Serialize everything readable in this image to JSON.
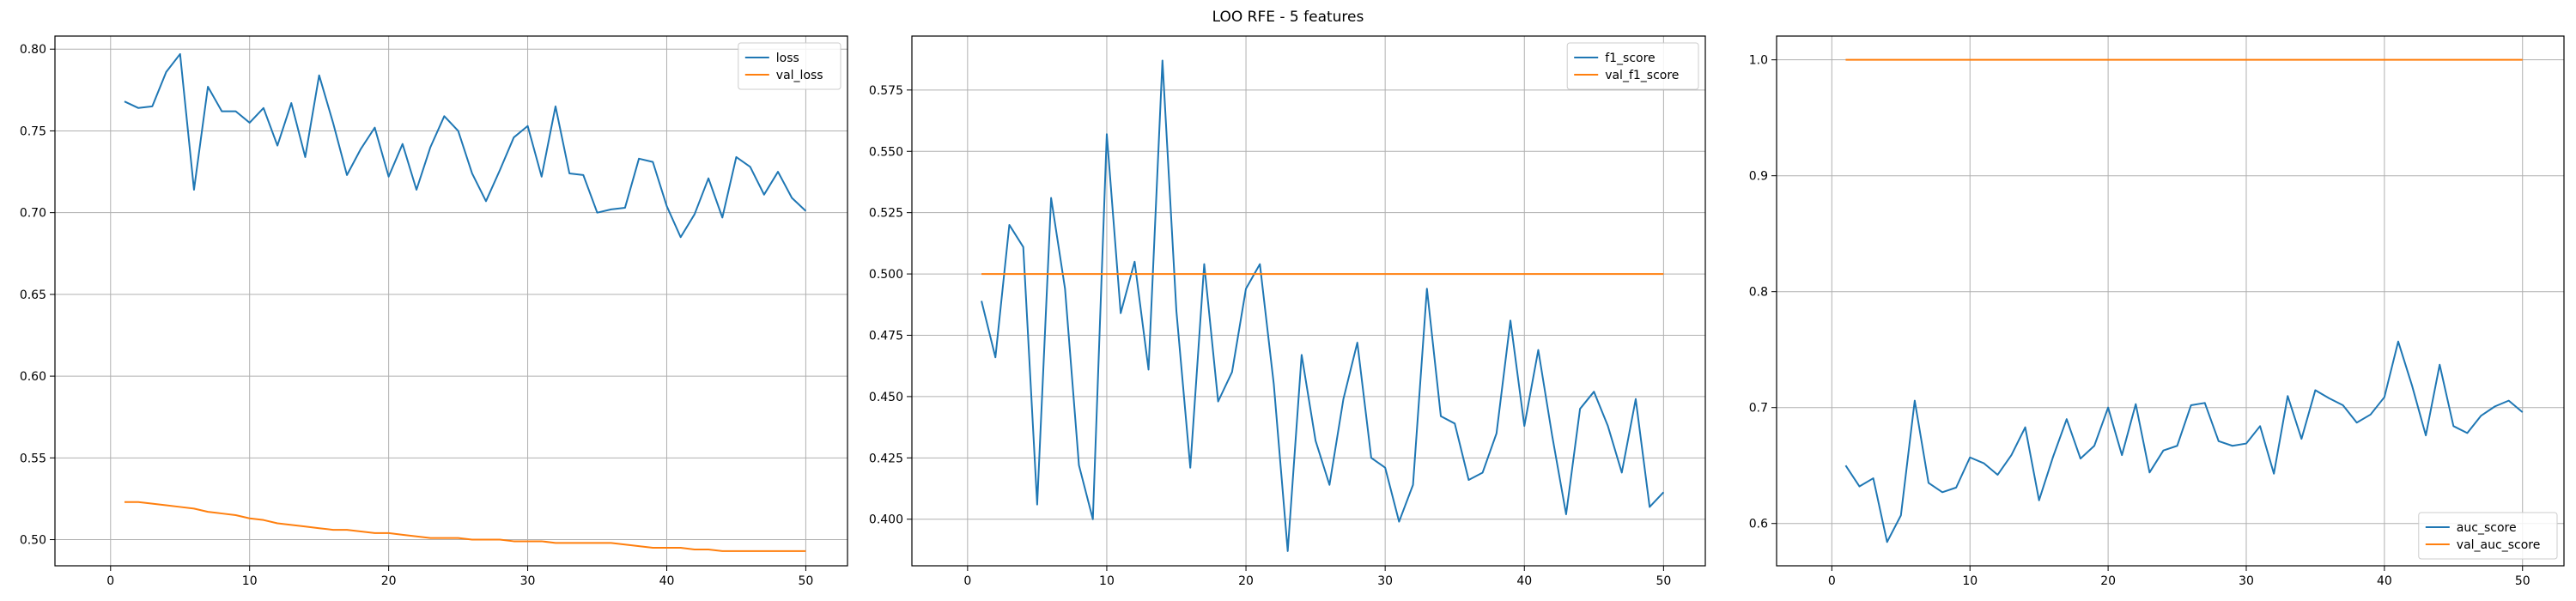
{
  "suptitle": "LOO RFE - 5 features",
  "colors": {
    "series1": "#1f77b4",
    "series2": "#ff7f0e",
    "grid": "#b0b0b0"
  },
  "chart_data": [
    {
      "type": "line",
      "title": "",
      "xlabel": "",
      "ylabel": "",
      "grid": true,
      "legend": "top-right",
      "xlim": [
        -4,
        53
      ],
      "ylim": [
        0.484,
        0.808
      ],
      "xticks": [
        "0",
        "10",
        "20",
        "30",
        "40",
        "50"
      ],
      "yticks": [
        "0.50",
        "0.55",
        "0.60",
        "0.65",
        "0.70",
        "0.75",
        "0.80"
      ],
      "x": [
        1,
        2,
        3,
        4,
        5,
        6,
        7,
        8,
        9,
        10,
        11,
        12,
        13,
        14,
        15,
        16,
        17,
        18,
        19,
        20,
        21,
        22,
        23,
        24,
        25,
        26,
        27,
        28,
        29,
        30,
        31,
        32,
        33,
        34,
        35,
        36,
        37,
        38,
        39,
        40,
        41,
        42,
        43,
        44,
        45,
        46,
        47,
        48,
        49,
        50
      ],
      "series": [
        {
          "name": "loss",
          "values": [
            0.768,
            0.764,
            0.765,
            0.786,
            0.797,
            0.714,
            0.777,
            0.762,
            0.762,
            0.755,
            0.764,
            0.741,
            0.767,
            0.734,
            0.784,
            0.755,
            0.723,
            0.739,
            0.752,
            0.722,
            0.742,
            0.714,
            0.74,
            0.759,
            0.75,
            0.724,
            0.707,
            0.726,
            0.746,
            0.753,
            0.722,
            0.765,
            0.724,
            0.723,
            0.7,
            0.702,
            0.703,
            0.733,
            0.731,
            0.704,
            0.685,
            0.699,
            0.721,
            0.697,
            0.734,
            0.728,
            0.711,
            0.725,
            0.709,
            0.701
          ]
        },
        {
          "name": "val_loss",
          "values": [
            0.523,
            0.523,
            0.522,
            0.521,
            0.52,
            0.519,
            0.517,
            0.516,
            0.515,
            0.513,
            0.512,
            0.51,
            0.509,
            0.508,
            0.507,
            0.506,
            0.506,
            0.505,
            0.504,
            0.504,
            0.503,
            0.502,
            0.501,
            0.501,
            0.501,
            0.5,
            0.5,
            0.5,
            0.499,
            0.499,
            0.499,
            0.498,
            0.498,
            0.498,
            0.498,
            0.498,
            0.497,
            0.496,
            0.495,
            0.495,
            0.495,
            0.494,
            0.494,
            0.493,
            0.493,
            0.493,
            0.493,
            0.493,
            0.493,
            0.493
          ]
        }
      ]
    },
    {
      "type": "line",
      "title": "",
      "xlabel": "",
      "ylabel": "",
      "grid": true,
      "legend": "top-right",
      "xlim": [
        -4,
        53
      ],
      "ylim": [
        0.381,
        0.597
      ],
      "xticks": [
        "0",
        "10",
        "20",
        "30",
        "40",
        "50"
      ],
      "yticks": [
        "0.400",
        "0.425",
        "0.450",
        "0.475",
        "0.500",
        "0.525",
        "0.550",
        "0.575"
      ],
      "x": [
        1,
        2,
        3,
        4,
        5,
        6,
        7,
        8,
        9,
        10,
        11,
        12,
        13,
        14,
        15,
        16,
        17,
        18,
        19,
        20,
        21,
        22,
        23,
        24,
        25,
        26,
        27,
        28,
        29,
        30,
        31,
        32,
        33,
        34,
        35,
        36,
        37,
        38,
        39,
        40,
        41,
        42,
        43,
        44,
        45,
        46,
        47,
        48,
        49,
        50
      ],
      "series": [
        {
          "name": "f1_score",
          "values": [
            0.489,
            0.466,
            0.52,
            0.511,
            0.406,
            0.531,
            0.494,
            0.422,
            0.4,
            0.557,
            0.484,
            0.505,
            0.461,
            0.587,
            0.485,
            0.421,
            0.504,
            0.448,
            0.46,
            0.494,
            0.504,
            0.455,
            0.387,
            0.467,
            0.432,
            0.414,
            0.449,
            0.472,
            0.425,
            0.421,
            0.399,
            0.414,
            0.494,
            0.442,
            0.439,
            0.416,
            0.419,
            0.435,
            0.481,
            0.438,
            0.469,
            0.434,
            0.402,
            0.445,
            0.452,
            0.438,
            0.419,
            0.449,
            0.405,
            0.411
          ]
        },
        {
          "name": "val_f1_score",
          "values": [
            0.5,
            0.5,
            0.5,
            0.5,
            0.5,
            0.5,
            0.5,
            0.5,
            0.5,
            0.5,
            0.5,
            0.5,
            0.5,
            0.5,
            0.5,
            0.5,
            0.5,
            0.5,
            0.5,
            0.5,
            0.5,
            0.5,
            0.5,
            0.5,
            0.5,
            0.5,
            0.5,
            0.5,
            0.5,
            0.5,
            0.5,
            0.5,
            0.5,
            0.5,
            0.5,
            0.5,
            0.5,
            0.5,
            0.5,
            0.5,
            0.5,
            0.5,
            0.5,
            0.5,
            0.5,
            0.5,
            0.5,
            0.5,
            0.5,
            0.5
          ]
        }
      ]
    },
    {
      "type": "line",
      "title": "",
      "xlabel": "",
      "ylabel": "",
      "grid": true,
      "legend": "bottom-right",
      "xlim": [
        -4,
        53
      ],
      "ylim": [
        0.5635,
        1.0205
      ],
      "xticks": [
        "0",
        "10",
        "20",
        "30",
        "40",
        "50"
      ],
      "yticks": [
        "0.6",
        "0.7",
        "0.8",
        "0.9",
        "1.0"
      ],
      "x": [
        1,
        2,
        3,
        4,
        5,
        6,
        7,
        8,
        9,
        10,
        11,
        12,
        13,
        14,
        15,
        16,
        17,
        18,
        19,
        20,
        21,
        22,
        23,
        24,
        25,
        26,
        27,
        28,
        29,
        30,
        31,
        32,
        33,
        34,
        35,
        36,
        37,
        38,
        39,
        40,
        41,
        42,
        43,
        44,
        45,
        46,
        47,
        48,
        49,
        50
      ],
      "series": [
        {
          "name": "auc_score",
          "values": [
            0.65,
            0.632,
            0.639,
            0.584,
            0.607,
            0.706,
            0.635,
            0.627,
            0.631,
            0.657,
            0.652,
            0.642,
            0.659,
            0.683,
            0.62,
            0.657,
            0.69,
            0.656,
            0.667,
            0.7,
            0.659,
            0.703,
            0.644,
            0.663,
            0.667,
            0.702,
            0.704,
            0.671,
            0.667,
            0.669,
            0.684,
            0.643,
            0.71,
            0.673,
            0.715,
            0.708,
            0.702,
            0.687,
            0.694,
            0.709,
            0.757,
            0.719,
            0.676,
            0.737,
            0.684,
            0.678,
            0.693,
            0.701,
            0.706,
            0.696
          ]
        },
        {
          "name": "val_auc_score",
          "values": [
            1.0,
            1.0,
            1.0,
            1.0,
            1.0,
            1.0,
            1.0,
            1.0,
            1.0,
            1.0,
            1.0,
            1.0,
            1.0,
            1.0,
            1.0,
            1.0,
            1.0,
            1.0,
            1.0,
            1.0,
            1.0,
            1.0,
            1.0,
            1.0,
            1.0,
            1.0,
            1.0,
            1.0,
            1.0,
            1.0,
            1.0,
            1.0,
            1.0,
            1.0,
            1.0,
            1.0,
            1.0,
            1.0,
            1.0,
            1.0,
            1.0,
            1.0,
            1.0,
            1.0,
            1.0,
            1.0,
            1.0,
            1.0,
            1.0,
            1.0
          ]
        }
      ]
    }
  ]
}
